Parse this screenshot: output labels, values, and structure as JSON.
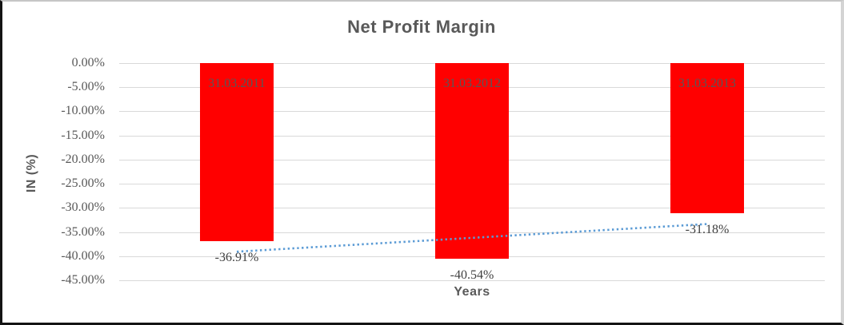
{
  "chart_data": {
    "type": "bar",
    "title": "Net Profit Margin",
    "xlabel": "Years",
    "ylabel": "IN (%)",
    "categories": [
      "31.03.2011",
      "31.03.2012",
      "31.03.2013"
    ],
    "values": [
      -36.91,
      -40.54,
      -31.18
    ],
    "data_labels": [
      "-36.91%",
      "-40.54%",
      "-31.18%"
    ],
    "y_ticks": [
      "0.00%",
      "-5.00%",
      "-10.00%",
      "-15.00%",
      "-20.00%",
      "-25.00%",
      "-30.00%",
      "-35.00%",
      "-40.00%",
      "-45.00%"
    ],
    "ylim": [
      -45,
      0
    ],
    "grid": true,
    "legend": "none",
    "colors": {
      "bar": "#FF0000",
      "trendline": "#5B9BD5",
      "gridline": "#D9D9D9",
      "title_text": "#595959",
      "tick_text": "#595959",
      "data_label_text": "#404040"
    },
    "trendline": {
      "type": "linear",
      "style": "dotted"
    }
  }
}
